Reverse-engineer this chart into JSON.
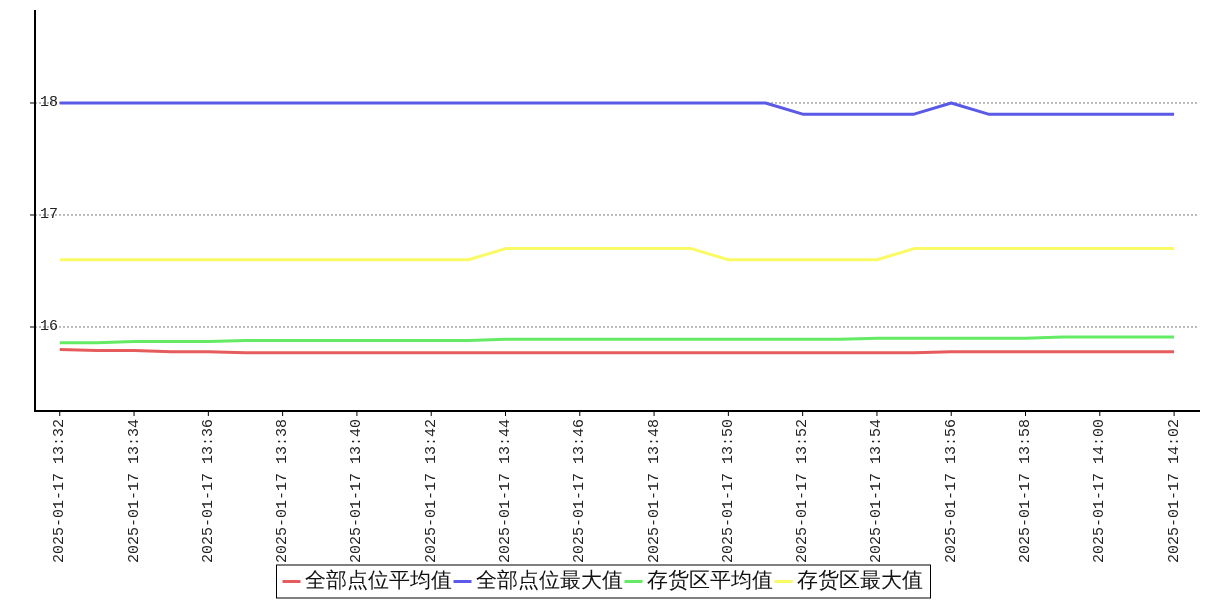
{
  "chart_data": {
    "type": "line",
    "x": [
      "2025-01-17T13:32",
      "2025-01-17T13:33",
      "2025-01-17T13:34",
      "2025-01-17T13:35",
      "2025-01-17T13:36",
      "2025-01-17T13:37",
      "2025-01-17T13:38",
      "2025-01-17T13:39",
      "2025-01-17T13:40",
      "2025-01-17T13:41",
      "2025-01-17T13:42",
      "2025-01-17T13:43",
      "2025-01-17T13:44",
      "2025-01-17T13:45",
      "2025-01-17T13:46",
      "2025-01-17T13:47",
      "2025-01-17T13:48",
      "2025-01-17T13:49",
      "2025-01-17T13:50",
      "2025-01-17T13:51",
      "2025-01-17T13:52",
      "2025-01-17T13:53",
      "2025-01-17T13:54",
      "2025-01-17T13:55",
      "2025-01-17T13:56",
      "2025-01-17T13:57",
      "2025-01-17T13:58",
      "2025-01-17T13:59",
      "2025-01-17T14:00",
      "2025-01-17T14:01",
      "2025-01-17T14:02"
    ],
    "series": [
      {
        "name": "全部点位平均值",
        "color": "#e65c5c",
        "values": [
          15.8,
          15.79,
          15.79,
          15.78,
          15.78,
          15.77,
          15.77,
          15.77,
          15.77,
          15.77,
          15.77,
          15.77,
          15.77,
          15.77,
          15.77,
          15.77,
          15.77,
          15.77,
          15.77,
          15.77,
          15.77,
          15.77,
          15.77,
          15.77,
          15.78,
          15.78,
          15.78,
          15.78,
          15.78,
          15.78,
          15.78
        ]
      },
      {
        "name": "全部点位最大值",
        "color": "#5a5ae6",
        "values": [
          18,
          18,
          18,
          18,
          18,
          18,
          18,
          18,
          18,
          18,
          18,
          18,
          18,
          18,
          18,
          18,
          18,
          18,
          18,
          18,
          17.9,
          17.9,
          17.9,
          17.9,
          18,
          17.9,
          17.9,
          17.9,
          17.9,
          17.9,
          17.9
        ]
      },
      {
        "name": "存货区平均值",
        "color": "#64eb64",
        "values": [
          15.86,
          15.86,
          15.87,
          15.87,
          15.87,
          15.88,
          15.88,
          15.88,
          15.88,
          15.88,
          15.88,
          15.88,
          15.89,
          15.89,
          15.89,
          15.89,
          15.89,
          15.89,
          15.89,
          15.89,
          15.89,
          15.89,
          15.9,
          15.9,
          15.9,
          15.9,
          15.9,
          15.91,
          15.91,
          15.91,
          15.91
        ]
      },
      {
        "name": "存货区最大值",
        "color": "#fafa64",
        "values": [
          16.6,
          16.6,
          16.6,
          16.6,
          16.6,
          16.6,
          16.6,
          16.6,
          16.6,
          16.6,
          16.6,
          16.6,
          16.7,
          16.7,
          16.7,
          16.7,
          16.7,
          16.7,
          16.6,
          16.6,
          16.6,
          16.6,
          16.6,
          16.7,
          16.7,
          16.7,
          16.7,
          16.7,
          16.7,
          16.7,
          16.7
        ]
      }
    ],
    "xlim": [
      "2025-01-17T13:31:20",
      "2025-01-17T14:02:37"
    ],
    "xticks": [
      {
        "value": "2025-01-17T13:32",
        "label": "2025-01-17 13:32"
      },
      {
        "value": "2025-01-17T13:34",
        "label": "2025-01-17 13:34"
      },
      {
        "value": "2025-01-17T13:36",
        "label": "2025-01-17 13:36"
      },
      {
        "value": "2025-01-17T13:38",
        "label": "2025-01-17 13:38"
      },
      {
        "value": "2025-01-17T13:40",
        "label": "2025-01-17 13:40"
      },
      {
        "value": "2025-01-17T13:42",
        "label": "2025-01-17 13:42"
      },
      {
        "value": "2025-01-17T13:44",
        "label": "2025-01-17 13:44"
      },
      {
        "value": "2025-01-17T13:46",
        "label": "2025-01-17 13:46"
      },
      {
        "value": "2025-01-17T13:48",
        "label": "2025-01-17 13:48"
      },
      {
        "value": "2025-01-17T13:50",
        "label": "2025-01-17 13:50"
      },
      {
        "value": "2025-01-17T13:52",
        "label": "2025-01-17 13:52"
      },
      {
        "value": "2025-01-17T13:54",
        "label": "2025-01-17 13:54"
      },
      {
        "value": "2025-01-17T13:56",
        "label": "2025-01-17 13:56"
      },
      {
        "value": "2025-01-17T13:58",
        "label": "2025-01-17 13:58"
      },
      {
        "value": "2025-01-17T14:00",
        "label": "2025-01-17 14:00"
      },
      {
        "value": "2025-01-17T14:02",
        "label": "2025-01-17 14:02"
      }
    ],
    "ylim": [
      15.25,
      18.83
    ],
    "yticks": [
      16,
      17,
      18
    ],
    "grid": "y",
    "legend": "bottom"
  }
}
